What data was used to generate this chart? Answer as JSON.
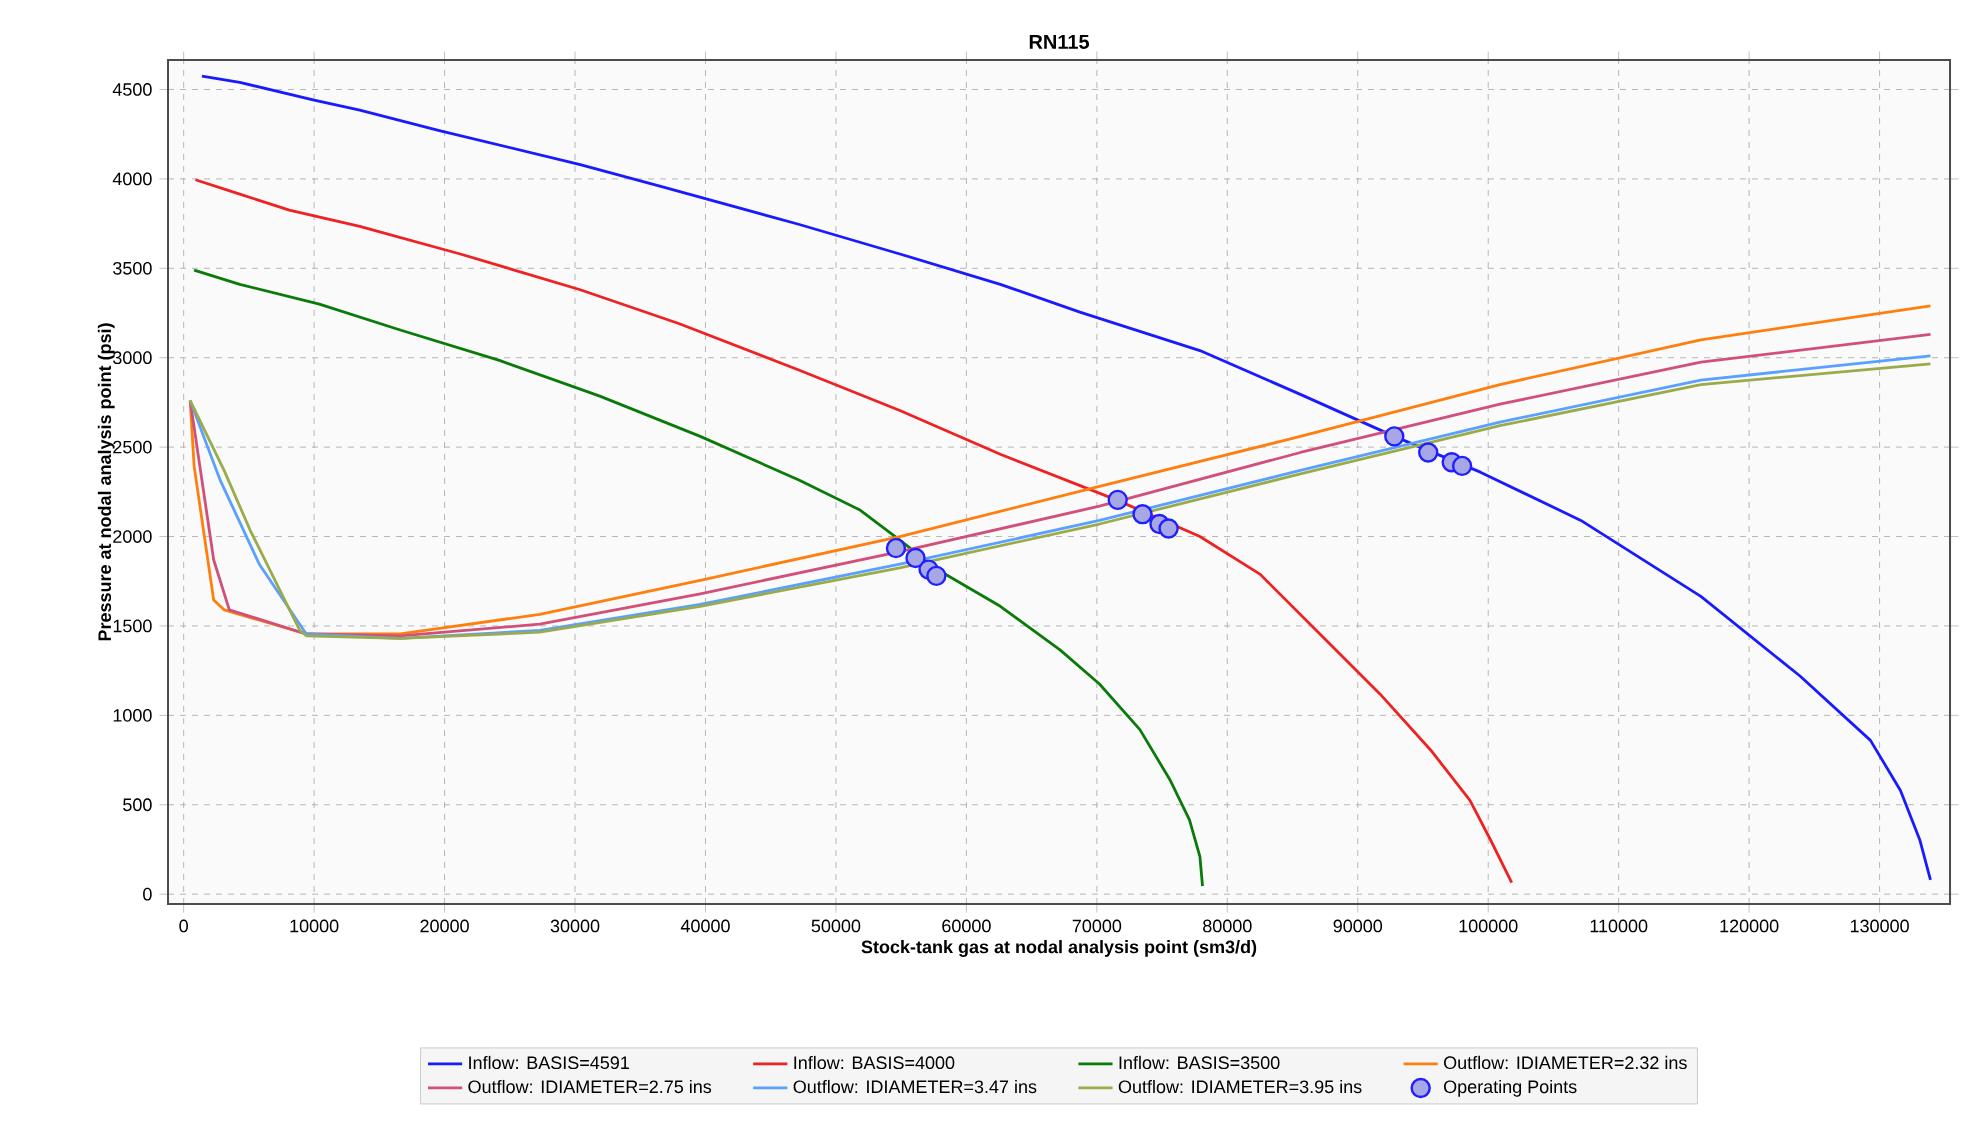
{
  "chart_data": {
    "type": "line",
    "title": "RN115",
    "xlabel": "Stock-tank gas at nodal analysis point (sm3/d)",
    "ylabel": "Pressure at nodal analysis point (psi)",
    "xlim": [
      -1200,
      135400
    ],
    "ylim": [
      -55,
      4665
    ],
    "xticks": [
      0,
      10000,
      20000,
      30000,
      40000,
      50000,
      60000,
      70000,
      80000,
      90000,
      100000,
      110000,
      120000,
      130000
    ],
    "yticks": [
      0,
      500,
      1000,
      1500,
      2000,
      2500,
      3000,
      3500,
      4000,
      4500
    ],
    "grid": true,
    "legend": "bottom",
    "line_style": "solid",
    "series": [
      {
        "name": "Inflow: BASIS=4591",
        "color": "#1a1aff",
        "x": [
          1400,
          4300,
          10000,
          13500,
          19600,
          30400,
          36500,
          47200,
          54900,
          62600,
          68700,
          77900,
          85600,
          92800,
          99400,
          107100,
          116300,
          123900,
          129300,
          131600,
          133100,
          133900
        ],
        "values": [
          4575,
          4540,
          4440,
          4385,
          4270,
          4080,
          3960,
          3745,
          3580,
          3410,
          3255,
          3040,
          2795,
          2560,
          2360,
          2090,
          1665,
          1220,
          860,
          580,
          300,
          80
        ]
      },
      {
        "name": "Inflow: BASIS=4000",
        "color": "#ee2222",
        "x": [
          900,
          4300,
          8100,
          13500,
          21200,
          30400,
          38000,
          47200,
          54900,
          62600,
          71500,
          77900,
          82500,
          87100,
          91700,
          95600,
          98600,
          100200,
          101800
        ],
        "values": [
          3995,
          3915,
          3825,
          3735,
          3580,
          3380,
          3190,
          2930,
          2705,
          2460,
          2205,
          2000,
          1790,
          1455,
          1120,
          805,
          525,
          300,
          65
        ]
      },
      {
        "name": "Inflow: BASIS=3500",
        "color": "#0a7a0a",
        "x": [
          800,
          4300,
          10400,
          16600,
          24200,
          31900,
          39600,
          47200,
          51800,
          54900,
          57900,
          62600,
          67200,
          70200,
          73300,
          75600,
          77100,
          77900,
          78100
        ],
        "values": [
          3490,
          3410,
          3300,
          3155,
          2985,
          2785,
          2560,
          2315,
          2150,
          1980,
          1810,
          1610,
          1365,
          1175,
          920,
          640,
          415,
          210,
          45
        ]
      },
      {
        "name": "Outflow: IDIAMETER=2.32 ins",
        "color": "#ff7f0e",
        "x": [
          500,
          800,
          2300,
          3100,
          9400,
          16600,
          27300,
          39600,
          54900,
          70200,
          85600,
          100900,
          116300,
          133900
        ],
        "values": [
          2760,
          2395,
          1645,
          1590,
          1455,
          1455,
          1565,
          1755,
          2000,
          2280,
          2560,
          2850,
          3100,
          3290
        ]
      },
      {
        "name": "Outflow: IDIAMETER=2.75 ins",
        "color": "#d0507a",
        "x": [
          500,
          2300,
          3500,
          9400,
          16600,
          27300,
          39600,
          54900,
          70200,
          85600,
          100900,
          116300,
          133900
        ],
        "values": [
          2760,
          1870,
          1590,
          1455,
          1445,
          1510,
          1680,
          1915,
          2170,
          2470,
          2740,
          2975,
          3130
        ]
      },
      {
        "name": "Outflow: IDIAMETER=3.47 ins",
        "color": "#5aa0ff",
        "x": [
          500,
          2800,
          5800,
          9400,
          16600,
          27300,
          39600,
          54900,
          70200,
          85600,
          100900,
          116300,
          133900
        ],
        "values": [
          2760,
          2315,
          1845,
          1455,
          1430,
          1475,
          1620,
          1845,
          2090,
          2370,
          2640,
          2875,
          3010
        ]
      },
      {
        "name": "Outflow: IDIAMETER=3.95 ins",
        "color": "#9aab4a",
        "x": [
          500,
          3100,
          5100,
          8900,
          9400,
          16600,
          27300,
          39600,
          54900,
          70200,
          85600,
          100900,
          116300,
          133900
        ],
        "values": [
          2760,
          2370,
          2035,
          1475,
          1445,
          1430,
          1465,
          1610,
          1825,
          2070,
          2350,
          2620,
          2850,
          2965
        ]
      },
      {
        "name": "Operating Points",
        "type": "scatter",
        "marker": "circle",
        "color": "#2020ff",
        "x": [
          54600,
          56100,
          57100,
          57700,
          71600,
          73500,
          74800,
          75500,
          92800,
          95400,
          97200,
          98000
        ],
        "values": [
          1935,
          1880,
          1815,
          1780,
          2205,
          2125,
          2070,
          2045,
          2560,
          2470,
          2415,
          2395
        ]
      }
    ]
  }
}
